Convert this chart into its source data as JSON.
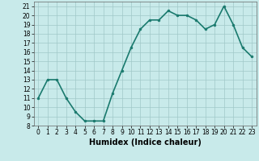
{
  "x": [
    0,
    1,
    2,
    3,
    4,
    5,
    6,
    7,
    8,
    9,
    10,
    11,
    12,
    13,
    14,
    15,
    16,
    17,
    18,
    19,
    20,
    21,
    22,
    23
  ],
  "y": [
    11,
    13,
    13,
    11,
    9.5,
    8.5,
    8.5,
    8.5,
    11.5,
    14,
    16.5,
    18.5,
    19.5,
    19.5,
    20.5,
    20,
    20,
    19.5,
    18.5,
    19,
    21,
    19,
    16.5,
    15.5
  ],
  "line_color": "#1a7a6e",
  "marker": "o",
  "marker_size": 2,
  "bg_color": "#c8eaea",
  "grid_color": "#a0c8c8",
  "xlabel": "Humidex (Indice chaleur)",
  "ylim": [
    8,
    21.5
  ],
  "xlim": [
    -0.5,
    23.5
  ],
  "yticks": [
    8,
    9,
    10,
    11,
    12,
    13,
    14,
    15,
    16,
    17,
    18,
    19,
    20,
    21
  ],
  "xticks": [
    0,
    1,
    2,
    3,
    4,
    5,
    6,
    7,
    8,
    9,
    10,
    11,
    12,
    13,
    14,
    15,
    16,
    17,
    18,
    19,
    20,
    21,
    22,
    23
  ],
  "tick_fontsize": 5.5,
  "label_fontsize": 7,
  "linewidth": 1.2
}
